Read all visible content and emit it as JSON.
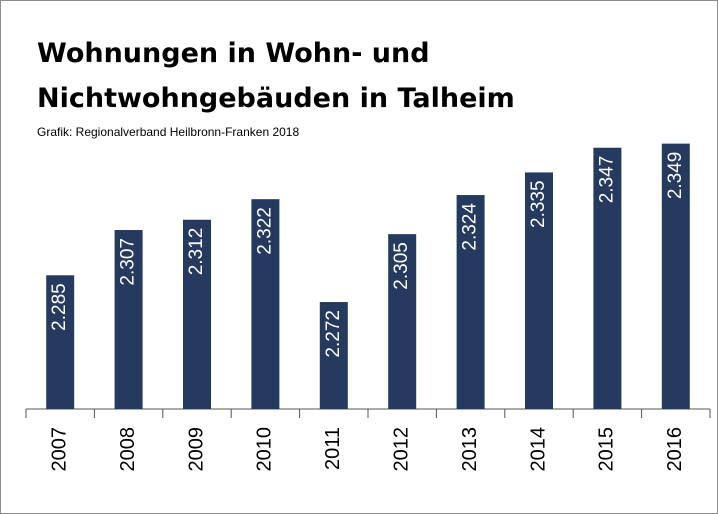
{
  "chart_data": {
    "type": "bar",
    "title": "Wohnungen in Wohn- und Nichtwohngebäuden in Talheim",
    "subtitle": "Grafik: Regionalverband Heilbronn-Franken 2018",
    "categories": [
      "2007",
      "2008",
      "2009",
      "2010",
      "2011",
      "2012",
      "2013",
      "2014",
      "2015",
      "2016"
    ],
    "values": [
      2285,
      2307,
      2312,
      2322,
      2272,
      2305,
      2324,
      2335,
      2347,
      2349
    ],
    "value_labels": [
      "2.285",
      "2.307",
      "2.312",
      "2.322",
      "2.272",
      "2.305",
      "2.324",
      "2.335",
      "2.347",
      "2.349"
    ],
    "color": "#253a5e",
    "ylim": [
      2220,
      2360
    ]
  }
}
